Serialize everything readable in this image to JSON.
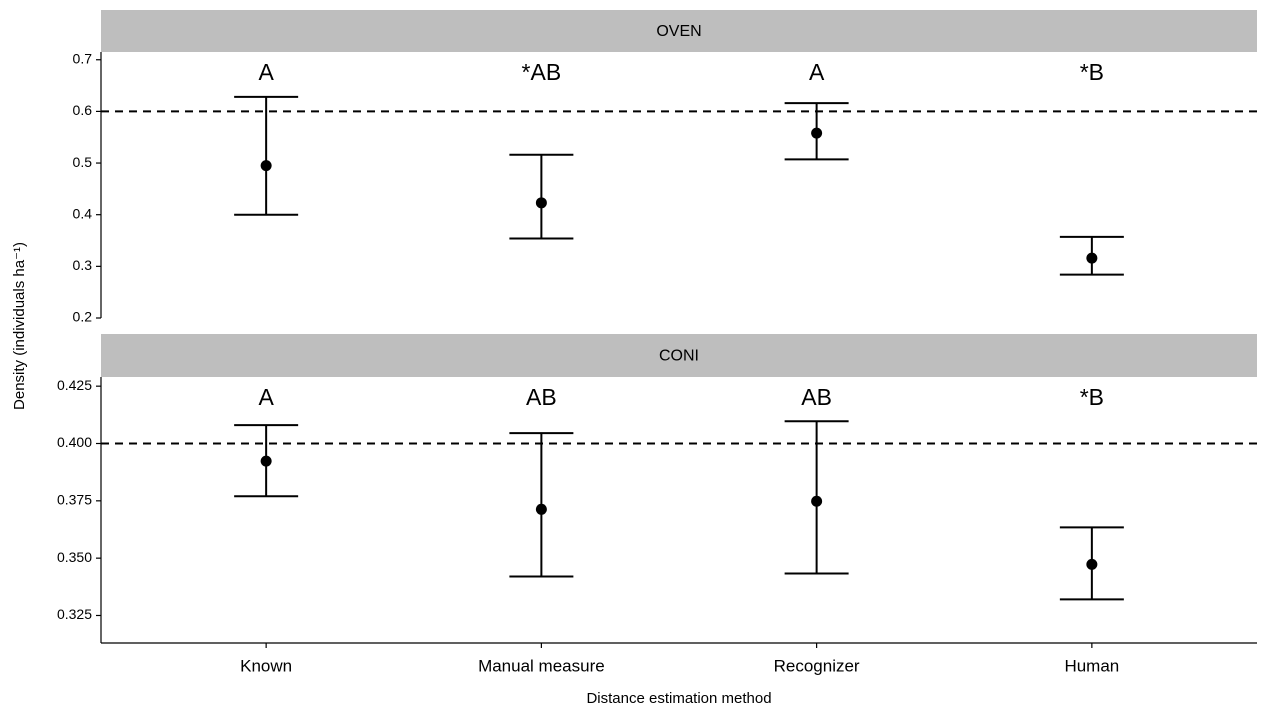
{
  "chart_data": [
    {
      "type": "errorbar",
      "title": "OVEN",
      "values": [
        0.495,
        0.423,
        0.558,
        0.316
      ],
      "lower": [
        0.4,
        0.354,
        0.507,
        0.284
      ],
      "upper": [
        0.628,
        0.516,
        0.616,
        0.357
      ],
      "annotations": [
        "A",
        "*AB",
        "A",
        "*B"
      ],
      "hline": 0.6,
      "ylim": [
        0.2,
        0.715
      ],
      "yticks": [
        0.2,
        0.3,
        0.4,
        0.5,
        0.6,
        0.7
      ],
      "ylabel": "Density (individuals ha⁻¹)",
      "color": "#000000",
      "strip_color": "#bebebe"
    },
    {
      "type": "errorbar",
      "title": "CONI",
      "categories": [
        "Known",
        "Manual measure",
        "Recognizer",
        "Human"
      ],
      "values": [
        0.3923,
        0.3713,
        0.3748,
        0.3473
      ],
      "lower": [
        0.377,
        0.342,
        0.3433,
        0.332
      ],
      "upper": [
        0.408,
        0.4045,
        0.4097,
        0.3634
      ],
      "annotations": [
        "A",
        "AB",
        "AB",
        "*B"
      ],
      "hline": 0.4,
      "ylim": [
        0.313,
        0.429
      ],
      "yticks": [
        0.325,
        {
          "value": 0.35,
          "label": "0.350"
        },
        0.375,
        {
          "value": 0.4,
          "label": "0.400"
        },
        0.425
      ],
      "xlabel": "Distance estimation method",
      "color": "#000000",
      "strip_color": "#bebebe"
    }
  ]
}
